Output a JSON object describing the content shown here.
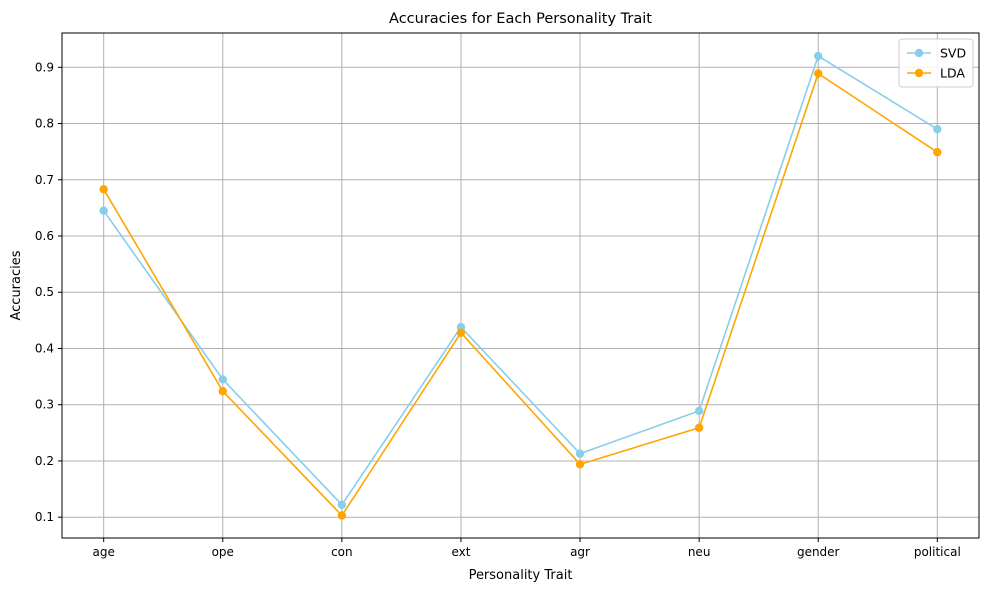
{
  "chart_data": {
    "type": "line",
    "title": "Accuracies for Each Personality Trait",
    "xlabel": "Personality Trait",
    "ylabel": "Accuracies",
    "categories": [
      "age",
      "ope",
      "con",
      "ext",
      "agr",
      "neu",
      "gender",
      "political"
    ],
    "series": [
      {
        "name": "SVD",
        "color": "#87ceeb",
        "marker": "circle",
        "values": [
          0.645,
          0.345,
          0.122,
          0.438,
          0.213,
          0.289,
          0.92,
          0.79
        ]
      },
      {
        "name": "LDA",
        "color": "#ffa500",
        "marker": "circle",
        "values": [
          0.683,
          0.324,
          0.103,
          0.428,
          0.194,
          0.259,
          0.889,
          0.749
        ]
      }
    ],
    "ylim": [
      0.063,
      0.961
    ],
    "yticks": [
      0.1,
      0.2,
      0.3,
      0.4,
      0.5,
      0.6,
      0.7,
      0.8,
      0.9
    ],
    "ytick_labels": [
      "0.1",
      "0.2",
      "0.3",
      "0.4",
      "0.5",
      "0.6",
      "0.7",
      "0.8",
      "0.9"
    ],
    "grid": true,
    "legend_position": "top-right"
  }
}
